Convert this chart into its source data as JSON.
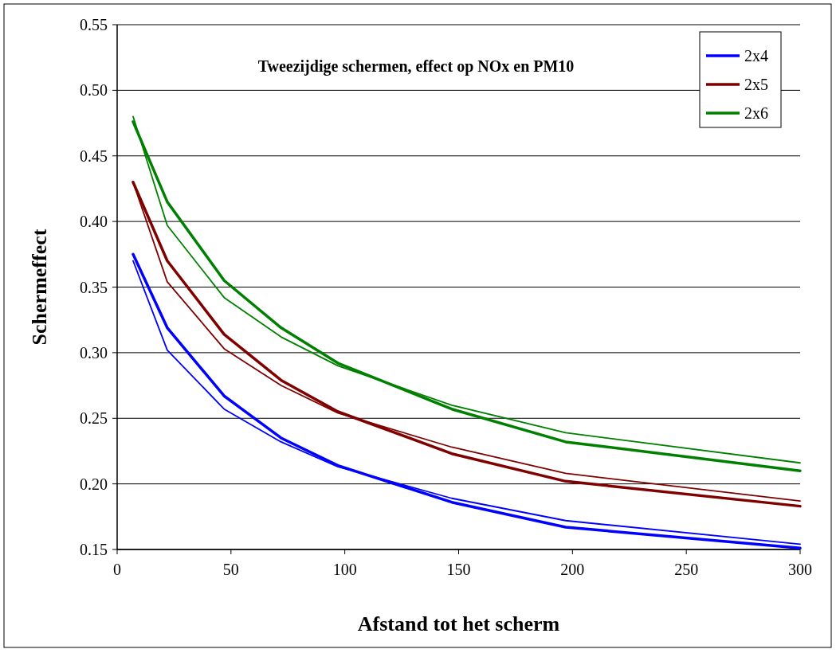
{
  "chart_data": {
    "type": "line",
    "title": "Tweezijdige schermen, effect op NOx en PM10",
    "xlabel": "Afstand tot het scherm",
    "ylabel": "Schermeffect",
    "x": [
      7,
      22,
      47,
      72,
      97,
      147,
      197,
      300
    ],
    "series": [
      {
        "name": "2x4",
        "color": "#0000ff",
        "values": [
          0.375,
          0.319,
          0.267,
          0.235,
          0.214,
          0.186,
          0.167,
          0.151
        ]
      },
      {
        "name": "2x5",
        "color": "#800000",
        "values": [
          0.43,
          0.37,
          0.314,
          0.279,
          0.255,
          0.223,
          0.202,
          0.183
        ]
      },
      {
        "name": "2x6",
        "color": "#008000",
        "values": [
          0.476,
          0.415,
          0.355,
          0.319,
          0.292,
          0.257,
          0.232,
          0.21
        ]
      },
      {
        "color": "#0000ff",
        "values": [
          0.37,
          0.302,
          0.257,
          0.232,
          0.213,
          0.189,
          0.172,
          0.154
        ]
      },
      {
        "color": "#800000",
        "values": [
          0.43,
          0.354,
          0.303,
          0.275,
          0.254,
          0.228,
          0.208,
          0.187
        ]
      },
      {
        "color": "#008000",
        "values": [
          0.48,
          0.397,
          0.342,
          0.312,
          0.29,
          0.26,
          0.239,
          0.216
        ]
      }
    ],
    "xlim": [
      0,
      300
    ],
    "xticks": [
      0,
      50,
      100,
      150,
      200,
      250,
      300
    ],
    "ylim": [
      0.15,
      0.55
    ],
    "yticks": [
      {
        "value": 0.15,
        "label": "0.15"
      },
      {
        "value": 0.2,
        "label": "0.20"
      },
      {
        "value": 0.25,
        "label": "0.25"
      },
      {
        "value": 0.3,
        "label": "0.30"
      },
      {
        "value": 0.35,
        "label": "0.35"
      },
      {
        "value": 0.4,
        "label": "0.40"
      },
      {
        "value": 0.45,
        "label": "0.45"
      },
      {
        "value": 0.5,
        "label": "0.50"
      },
      {
        "value": 0.55,
        "label": "0.55"
      }
    ],
    "grid": "y",
    "legend": "top right",
    "marker": "none",
    "line_style": "solid"
  }
}
